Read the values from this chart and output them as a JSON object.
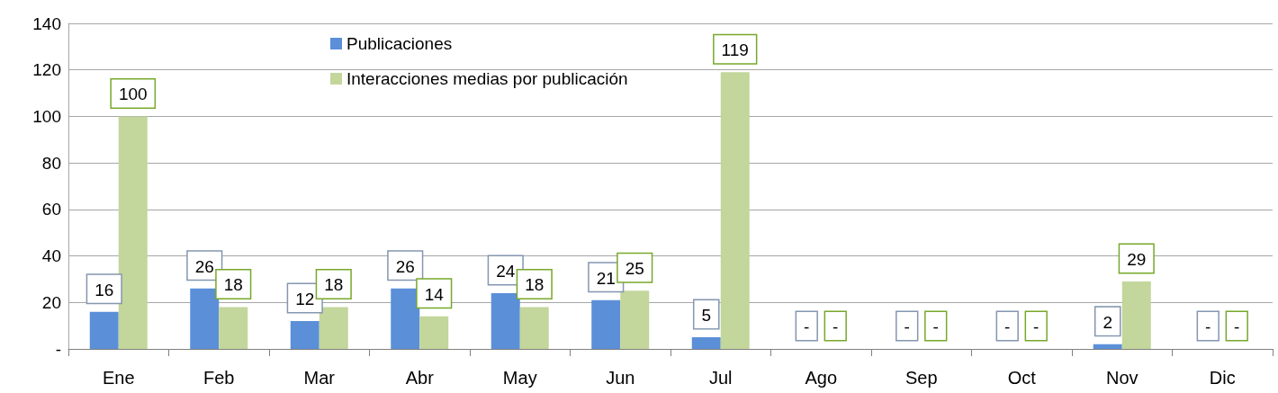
{
  "chart_data": {
    "type": "bar",
    "categories": [
      "Ene",
      "Feb",
      "Mar",
      "Abr",
      "May",
      "Jun",
      "Jul",
      "Ago",
      "Sep",
      "Oct",
      "Nov",
      "Dic"
    ],
    "series": [
      {
        "name": "Publicaciones",
        "color": "#5b8fd8",
        "values": [
          16,
          26,
          12,
          26,
          24,
          21,
          5,
          0,
          0,
          0,
          2,
          0
        ],
        "value_labels": [
          "16",
          "26",
          "12",
          "26",
          "24",
          "21",
          "5",
          "-",
          "-",
          "-",
          "2",
          "-"
        ]
      },
      {
        "name": "Interacciones medias por publicación",
        "color": "#c3d69b",
        "values": [
          100,
          18,
          18,
          14,
          18,
          25,
          119,
          0,
          0,
          0,
          29,
          0
        ],
        "value_labels": [
          "100",
          "18",
          "18",
          "14",
          "18",
          "25",
          "119",
          "-",
          "-",
          "-",
          "29",
          "-"
        ]
      }
    ],
    "ylim": [
      0,
      140
    ],
    "yticks": [
      {
        "value": 0,
        "label": "-"
      },
      20,
      40,
      60,
      80,
      100,
      120,
      140
    ],
    "grid": "y",
    "legend": "top"
  }
}
